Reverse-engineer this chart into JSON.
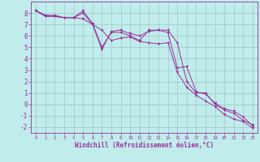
{
  "xlabel": "Windchill (Refroidissement éolien,°C)",
  "xlim": [
    -0.5,
    23.5
  ],
  "ylim": [
    -2.5,
    9.0
  ],
  "yticks": [
    -2,
    -1,
    0,
    1,
    2,
    3,
    4,
    5,
    6,
    7,
    8
  ],
  "xticks": [
    0,
    1,
    2,
    3,
    4,
    5,
    6,
    7,
    8,
    9,
    10,
    11,
    12,
    13,
    14,
    15,
    16,
    17,
    18,
    19,
    20,
    21,
    22,
    23
  ],
  "bg_color": "#c0ecec",
  "line_color": "#993399",
  "grid_color": "#a0c8c8",
  "series": [
    [
      8.2,
      7.8,
      7.7,
      7.6,
      7.6,
      8.0,
      7.0,
      4.8,
      6.4,
      6.5,
      6.2,
      6.0,
      6.4,
      6.5,
      6.3,
      3.2,
      3.3,
      1.1,
      0.9,
      0.1,
      -0.4,
      -0.6,
      -1.1,
      -1.9
    ],
    [
      8.2,
      7.7,
      7.7,
      7.6,
      7.6,
      8.2,
      7.1,
      5.0,
      6.3,
      6.3,
      6.0,
      5.6,
      6.5,
      6.5,
      6.5,
      5.4,
      2.0,
      1.0,
      1.0,
      0.0,
      -0.5,
      -0.8,
      -1.4,
      -1.8
    ],
    [
      8.2,
      7.8,
      7.8,
      7.6,
      7.6,
      7.5,
      7.0,
      6.5,
      5.6,
      5.8,
      5.9,
      5.5,
      5.4,
      5.3,
      5.4,
      2.8,
      1.5,
      0.8,
      0.3,
      -0.2,
      -0.9,
      -1.3,
      -1.5,
      -2.1
    ]
  ]
}
